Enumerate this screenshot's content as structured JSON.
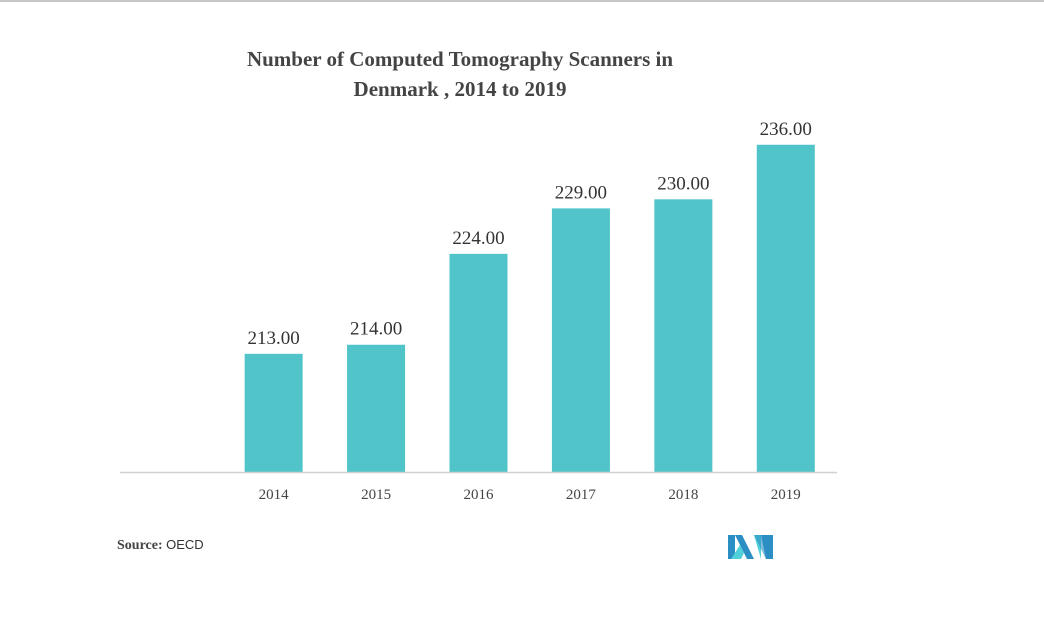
{
  "chart_data": {
    "type": "bar",
    "title_lines": [
      "Number of Computed Tomography Scanners in",
      "Denmark ,  2014 to 2019"
    ],
    "categories": [
      "2014",
      "2015",
      "2016",
      "2017",
      "2018",
      "2019"
    ],
    "values": [
      213,
      214,
      224,
      229,
      230,
      236
    ],
    "data_labels": [
      "213.00",
      "214.00",
      "224.00",
      "229.00",
      "230.00",
      "236.00"
    ],
    "xlabel": "",
    "ylabel": "",
    "ylim": [
      200,
      240
    ],
    "grid": false,
    "bar_color": "#50c4c9"
  },
  "source": {
    "label": "Source:",
    "value": "OECD"
  },
  "logo": {
    "text": "MI",
    "colors": [
      "#2b8fc4",
      "#50d0d8"
    ]
  }
}
